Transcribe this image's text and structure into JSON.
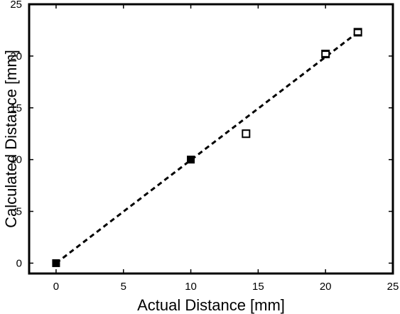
{
  "chart_data": {
    "type": "scatter",
    "title": "",
    "xlabel": "Actual Distance [mm]",
    "ylabel": "Calculated Distance [mm]",
    "xlim": [
      -2,
      25
    ],
    "ylim": [
      -1,
      25
    ],
    "xticks": [
      0,
      5,
      10,
      15,
      20,
      25
    ],
    "yticks": [
      0,
      5,
      10,
      15,
      20,
      25
    ],
    "grid": false,
    "legend": "none",
    "series": [
      {
        "marker": "square",
        "color": "#000000",
        "points": [
          {
            "x": 0,
            "y": 0,
            "err": 0.1
          },
          {
            "x": 10,
            "y": 10,
            "err": 0.1
          },
          {
            "x": 14.1,
            "y": 12.5,
            "err": 0.35
          },
          {
            "x": 20,
            "y": 20.2,
            "err": 0.25
          },
          {
            "x": 22.4,
            "y": 22.3,
            "err": 0.25
          }
        ]
      }
    ],
    "fit_line": {
      "style": "dashed",
      "color": "#000000",
      "points": [
        {
          "x": 0,
          "y": 0
        },
        {
          "x": 22.4,
          "y": 22.3
        }
      ]
    }
  }
}
